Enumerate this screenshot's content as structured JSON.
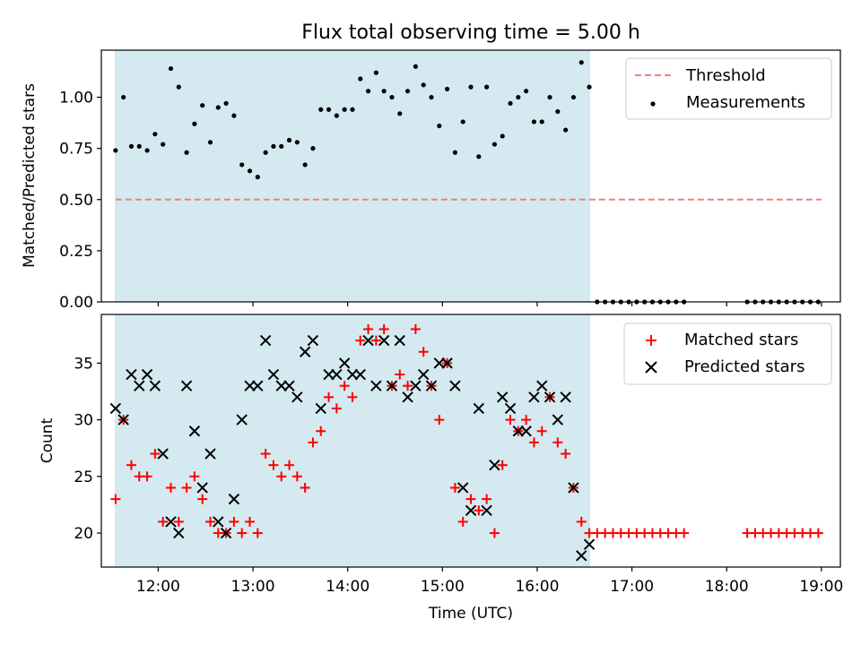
{
  "chart_data": [
    {
      "type": "scatter",
      "title": "Flux total observing time = 5.00 h",
      "xlabel": "",
      "ylabel": "Matched/Predicted stars",
      "xlim": [
        "11:24",
        "19:12"
      ],
      "ylim": [
        0.0,
        1.23
      ],
      "x_ticks": [
        "12:00",
        "13:00",
        "14:00",
        "15:00",
        "16:00",
        "17:00",
        "18:00",
        "19:00"
      ],
      "y_ticks": [
        "0.00",
        "0.25",
        "0.50",
        "0.75",
        "1.00"
      ],
      "shaded_span": {
        "x": [
          "11:33",
          "16:33"
        ],
        "color": "#d4eaf0"
      },
      "legend": {
        "placement": "upper right",
        "entries": [
          "Threshold",
          "Measurements"
        ]
      },
      "series": [
        {
          "name": "Threshold",
          "style": "dashed-line",
          "color": "#f08080",
          "x": [
            "11:33",
            "19:00"
          ],
          "y": [
            0.5,
            0.5
          ]
        },
        {
          "name": "Measurements",
          "style": "dot",
          "color": "#000000",
          "points": [
            [
              "11:33",
              0.74
            ],
            [
              "11:38",
              1.0
            ],
            [
              "11:43",
              0.76
            ],
            [
              "11:48",
              0.76
            ],
            [
              "11:53",
              0.74
            ],
            [
              "11:58",
              0.82
            ],
            [
              "12:03",
              0.77
            ],
            [
              "12:08",
              1.14
            ],
            [
              "12:13",
              1.05
            ],
            [
              "12:18",
              0.73
            ],
            [
              "12:23",
              0.87
            ],
            [
              "12:28",
              0.96
            ],
            [
              "12:33",
              0.78
            ],
            [
              "12:38",
              0.95
            ],
            [
              "12:43",
              0.97
            ],
            [
              "12:48",
              0.91
            ],
            [
              "12:53",
              0.67
            ],
            [
              "12:58",
              0.64
            ],
            [
              "13:03",
              0.61
            ],
            [
              "13:08",
              0.73
            ],
            [
              "13:13",
              0.76
            ],
            [
              "13:18",
              0.76
            ],
            [
              "13:23",
              0.79
            ],
            [
              "13:28",
              0.78
            ],
            [
              "13:33",
              0.67
            ],
            [
              "13:38",
              0.75
            ],
            [
              "13:43",
              0.94
            ],
            [
              "13:48",
              0.94
            ],
            [
              "13:53",
              0.91
            ],
            [
              "13:58",
              0.94
            ],
            [
              "14:03",
              0.94
            ],
            [
              "14:08",
              1.09
            ],
            [
              "14:13",
              1.03
            ],
            [
              "14:18",
              1.12
            ],
            [
              "14:23",
              1.03
            ],
            [
              "14:28",
              1.0
            ],
            [
              "14:33",
              0.92
            ],
            [
              "14:38",
              1.03
            ],
            [
              "14:43",
              1.15
            ],
            [
              "14:48",
              1.06
            ],
            [
              "14:53",
              1.0
            ],
            [
              "14:58",
              0.86
            ],
            [
              "15:03",
              1.04
            ],
            [
              "15:08",
              0.73
            ],
            [
              "15:13",
              0.88
            ],
            [
              "15:18",
              1.05
            ],
            [
              "15:23",
              0.71
            ],
            [
              "15:28",
              1.05
            ],
            [
              "15:33",
              0.77
            ],
            [
              "15:38",
              0.81
            ],
            [
              "15:43",
              0.97
            ],
            [
              "15:48",
              1.0
            ],
            [
              "15:53",
              1.03
            ],
            [
              "15:58",
              0.88
            ],
            [
              "16:03",
              0.88
            ],
            [
              "16:08",
              1.0
            ],
            [
              "16:13",
              0.93
            ],
            [
              "16:18",
              0.84
            ],
            [
              "16:23",
              1.0
            ],
            [
              "16:28",
              1.17
            ],
            [
              "16:33",
              1.05
            ],
            [
              "16:38",
              0.0
            ],
            [
              "16:43",
              0.0
            ],
            [
              "16:48",
              0.0
            ],
            [
              "16:53",
              0.0
            ],
            [
              "16:58",
              0.0
            ],
            [
              "17:03",
              0.0
            ],
            [
              "17:08",
              0.0
            ],
            [
              "17:13",
              0.0
            ],
            [
              "17:18",
              0.0
            ],
            [
              "17:23",
              0.0
            ],
            [
              "17:28",
              0.0
            ],
            [
              "17:33",
              0.0
            ],
            [
              "18:13",
              0.0
            ],
            [
              "18:18",
              0.0
            ],
            [
              "18:23",
              0.0
            ],
            [
              "18:28",
              0.0
            ],
            [
              "18:33",
              0.0
            ],
            [
              "18:38",
              0.0
            ],
            [
              "18:43",
              0.0
            ],
            [
              "18:48",
              0.0
            ],
            [
              "18:53",
              0.0
            ],
            [
              "18:58",
              0.0
            ]
          ]
        }
      ]
    },
    {
      "type": "scatter",
      "title": "",
      "xlabel": "Time (UTC)",
      "ylabel": "Count",
      "xlim": [
        "11:24",
        "19:12"
      ],
      "ylim": [
        17.0,
        39.3
      ],
      "x_ticks": [
        "12:00",
        "13:00",
        "14:00",
        "15:00",
        "16:00",
        "17:00",
        "18:00",
        "19:00"
      ],
      "y_ticks": [
        "20",
        "25",
        "30",
        "35"
      ],
      "shaded_span": {
        "x": [
          "11:33",
          "16:33"
        ],
        "color": "#d4eaf0"
      },
      "legend": {
        "placement": "upper right",
        "entries": [
          "Matched stars",
          "Predicted stars"
        ]
      },
      "series": [
        {
          "name": "Matched stars",
          "marker": "+",
          "color": "#ff0000",
          "points": [
            [
              "11:33",
              23
            ],
            [
              "11:38",
              30
            ],
            [
              "11:43",
              26
            ],
            [
              "11:48",
              25
            ],
            [
              "11:53",
              25
            ],
            [
              "11:58",
              27
            ],
            [
              "12:03",
              21
            ],
            [
              "12:08",
              24
            ],
            [
              "12:13",
              21
            ],
            [
              "12:18",
              24
            ],
            [
              "12:23",
              25
            ],
            [
              "12:28",
              23
            ],
            [
              "12:33",
              21
            ],
            [
              "12:38",
              20
            ],
            [
              "12:43",
              20
            ],
            [
              "12:48",
              21
            ],
            [
              "12:53",
              20
            ],
            [
              "12:58",
              21
            ],
            [
              "13:03",
              20
            ],
            [
              "13:08",
              27
            ],
            [
              "13:13",
              26
            ],
            [
              "13:18",
              25
            ],
            [
              "13:23",
              26
            ],
            [
              "13:28",
              25
            ],
            [
              "13:33",
              24
            ],
            [
              "13:38",
              28
            ],
            [
              "13:43",
              29
            ],
            [
              "13:48",
              32
            ],
            [
              "13:53",
              31
            ],
            [
              "13:58",
              33
            ],
            [
              "14:03",
              32
            ],
            [
              "14:08",
              37
            ],
            [
              "14:13",
              38
            ],
            [
              "14:18",
              37
            ],
            [
              "14:23",
              38
            ],
            [
              "14:28",
              33
            ],
            [
              "14:33",
              34
            ],
            [
              "14:38",
              33
            ],
            [
              "14:43",
              38
            ],
            [
              "14:48",
              36
            ],
            [
              "14:53",
              33
            ],
            [
              "14:58",
              30
            ],
            [
              "15:03",
              35
            ],
            [
              "15:08",
              24
            ],
            [
              "15:13",
              21
            ],
            [
              "15:18",
              23
            ],
            [
              "15:23",
              22
            ],
            [
              "15:28",
              23
            ],
            [
              "15:33",
              20
            ],
            [
              "15:38",
              26
            ],
            [
              "15:43",
              30
            ],
            [
              "15:48",
              29
            ],
            [
              "15:53",
              30
            ],
            [
              "15:58",
              28
            ],
            [
              "16:03",
              29
            ],
            [
              "16:08",
              32
            ],
            [
              "16:13",
              28
            ],
            [
              "16:18",
              27
            ],
            [
              "16:23",
              24
            ],
            [
              "16:28",
              21
            ],
            [
              "16:33",
              20
            ],
            [
              "16:38",
              20
            ],
            [
              "16:43",
              20
            ],
            [
              "16:48",
              20
            ],
            [
              "16:53",
              20
            ],
            [
              "16:58",
              20
            ],
            [
              "17:03",
              20
            ],
            [
              "17:08",
              20
            ],
            [
              "17:13",
              20
            ],
            [
              "17:18",
              20
            ],
            [
              "17:23",
              20
            ],
            [
              "17:28",
              20
            ],
            [
              "17:33",
              20
            ],
            [
              "18:13",
              20
            ],
            [
              "18:18",
              20
            ],
            [
              "18:23",
              20
            ],
            [
              "18:28",
              20
            ],
            [
              "18:33",
              20
            ],
            [
              "18:38",
              20
            ],
            [
              "18:43",
              20
            ],
            [
              "18:48",
              20
            ],
            [
              "18:53",
              20
            ],
            [
              "18:58",
              20
            ]
          ]
        },
        {
          "name": "Predicted stars",
          "marker": "x",
          "color": "#000000",
          "points": [
            [
              "11:33",
              31
            ],
            [
              "11:38",
              30
            ],
            [
              "11:43",
              34
            ],
            [
              "11:48",
              33
            ],
            [
              "11:53",
              34
            ],
            [
              "11:58",
              33
            ],
            [
              "12:03",
              27
            ],
            [
              "12:08",
              21
            ],
            [
              "12:13",
              20
            ],
            [
              "12:18",
              33
            ],
            [
              "12:23",
              29
            ],
            [
              "12:28",
              24
            ],
            [
              "12:33",
              27
            ],
            [
              "12:38",
              21
            ],
            [
              "12:43",
              20
            ],
            [
              "12:48",
              23
            ],
            [
              "12:53",
              30
            ],
            [
              "12:58",
              33
            ],
            [
              "13:03",
              33
            ],
            [
              "13:08",
              37
            ],
            [
              "13:13",
              34
            ],
            [
              "13:18",
              33
            ],
            [
              "13:23",
              33
            ],
            [
              "13:28",
              32
            ],
            [
              "13:33",
              36
            ],
            [
              "13:38",
              37
            ],
            [
              "13:43",
              31
            ],
            [
              "13:48",
              34
            ],
            [
              "13:53",
              34
            ],
            [
              "13:58",
              35
            ],
            [
              "14:03",
              34
            ],
            [
              "14:08",
              34
            ],
            [
              "14:13",
              37
            ],
            [
              "14:18",
              33
            ],
            [
              "14:23",
              37
            ],
            [
              "14:28",
              33
            ],
            [
              "14:33",
              37
            ],
            [
              "14:38",
              32
            ],
            [
              "14:43",
              33
            ],
            [
              "14:48",
              34
            ],
            [
              "14:53",
              33
            ],
            [
              "14:58",
              35
            ],
            [
              "15:03",
              35
            ],
            [
              "15:08",
              33
            ],
            [
              "15:13",
              24
            ],
            [
              "15:18",
              22
            ],
            [
              "15:23",
              31
            ],
            [
              "15:28",
              22
            ],
            [
              "15:33",
              26
            ],
            [
              "15:38",
              32
            ],
            [
              "15:43",
              31
            ],
            [
              "15:48",
              29
            ],
            [
              "15:53",
              29
            ],
            [
              "15:58",
              32
            ],
            [
              "16:03",
              33
            ],
            [
              "16:08",
              32
            ],
            [
              "16:13",
              30
            ],
            [
              "16:18",
              32
            ],
            [
              "16:23",
              24
            ],
            [
              "16:28",
              18
            ],
            [
              "16:33",
              19
            ]
          ]
        }
      ]
    }
  ]
}
